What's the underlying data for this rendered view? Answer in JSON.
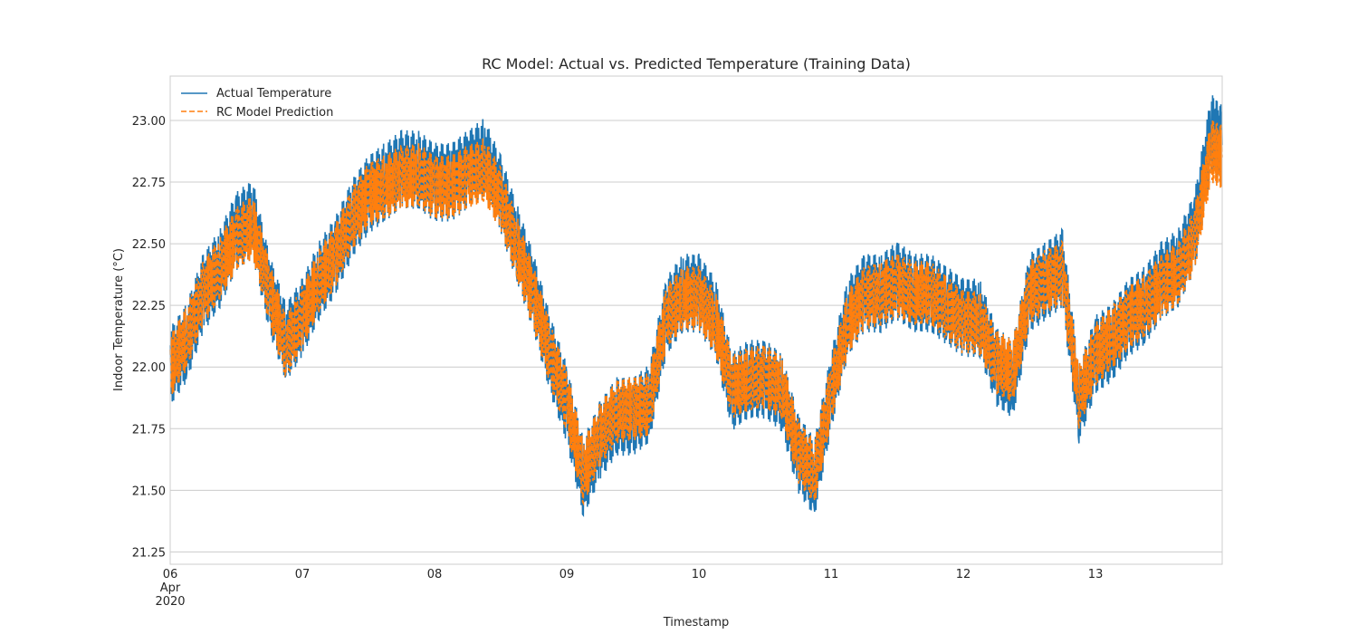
{
  "chart_data": {
    "type": "line",
    "title": "RC Model: Actual vs. Predicted Temperature (Training Data)",
    "xlabel": "Timestamp",
    "ylabel": "Indoor Temperature (°C)",
    "x_ticks": [
      {
        "value": "2020-04-06",
        "lines": [
          "06",
          "Apr",
          "2020"
        ]
      },
      {
        "value": "2020-04-07",
        "lines": [
          "07"
        ]
      },
      {
        "value": "2020-04-08",
        "lines": [
          "08"
        ]
      },
      {
        "value": "2020-04-09",
        "lines": [
          "09"
        ]
      },
      {
        "value": "2020-04-10",
        "lines": [
          "10"
        ]
      },
      {
        "value": "2020-04-11",
        "lines": [
          "11"
        ]
      },
      {
        "value": "2020-04-12",
        "lines": [
          "12"
        ]
      },
      {
        "value": "2020-04-13",
        "lines": [
          "13"
        ]
      }
    ],
    "xlim": [
      "2020-04-06 00:00",
      "2020-04-13 23:00"
    ],
    "y_ticks": [
      "21.25",
      "21.50",
      "21.75",
      "22.00",
      "22.25",
      "22.50",
      "22.75",
      "23.00"
    ],
    "ylim": [
      21.2,
      23.18
    ],
    "grid": true,
    "legend_position": "top-left",
    "series": [
      {
        "name": "Actual Temperature",
        "color": "#1f77b4",
        "style": "solid",
        "x": [
          "2020-04-06 00:00",
          "2020-04-06 03:00",
          "2020-04-06 06:00",
          "2020-04-06 09:00",
          "2020-04-06 12:00",
          "2020-04-06 15:00",
          "2020-04-06 18:00",
          "2020-04-06 21:00",
          "2020-04-07 00:00",
          "2020-04-07 03:00",
          "2020-04-07 06:00",
          "2020-04-07 09:00",
          "2020-04-07 12:00",
          "2020-04-07 15:00",
          "2020-04-07 18:00",
          "2020-04-07 21:00",
          "2020-04-08 00:00",
          "2020-04-08 03:00",
          "2020-04-08 06:00",
          "2020-04-08 09:00",
          "2020-04-08 12:00",
          "2020-04-08 15:00",
          "2020-04-08 18:00",
          "2020-04-08 21:00",
          "2020-04-09 00:00",
          "2020-04-09 03:00",
          "2020-04-09 06:00",
          "2020-04-09 09:00",
          "2020-04-09 12:00",
          "2020-04-09 15:00",
          "2020-04-09 18:00",
          "2020-04-09 21:00",
          "2020-04-10 00:00",
          "2020-04-10 03:00",
          "2020-04-10 06:00",
          "2020-04-10 09:00",
          "2020-04-10 12:00",
          "2020-04-10 15:00",
          "2020-04-10 18:00",
          "2020-04-10 21:00",
          "2020-04-11 00:00",
          "2020-04-11 03:00",
          "2020-04-11 06:00",
          "2020-04-11 09:00",
          "2020-04-11 12:00",
          "2020-04-11 15:00",
          "2020-04-11 18:00",
          "2020-04-11 21:00",
          "2020-04-12 00:00",
          "2020-04-12 03:00",
          "2020-04-12 06:00",
          "2020-04-12 09:00",
          "2020-04-12 12:00",
          "2020-04-12 15:00",
          "2020-04-12 18:00",
          "2020-04-12 21:00",
          "2020-04-13 00:00",
          "2020-04-13 03:00",
          "2020-04-13 06:00",
          "2020-04-13 09:00",
          "2020-04-13 12:00",
          "2020-04-13 15:00",
          "2020-04-13 18:00",
          "2020-04-13 21:00",
          "2020-04-13 23:00"
        ],
        "y": [
          22.0,
          22.1,
          22.3,
          22.4,
          22.55,
          22.6,
          22.3,
          22.1,
          22.2,
          22.35,
          22.45,
          22.6,
          22.7,
          22.75,
          22.8,
          22.8,
          22.75,
          22.75,
          22.8,
          22.85,
          22.7,
          22.5,
          22.3,
          22.05,
          21.85,
          21.55,
          21.7,
          21.8,
          21.8,
          21.85,
          22.2,
          22.3,
          22.3,
          22.2,
          21.9,
          21.95,
          21.95,
          21.9,
          21.65,
          21.55,
          21.9,
          22.2,
          22.3,
          22.3,
          22.35,
          22.3,
          22.3,
          22.25,
          22.2,
          22.2,
          22.0,
          21.95,
          22.3,
          22.35,
          22.4,
          21.85,
          22.05,
          22.1,
          22.2,
          22.25,
          22.35,
          22.4,
          22.55,
          22.95,
          22.9
        ]
      },
      {
        "name": "RC Model Prediction",
        "color": "#ff7f0e",
        "style": "dashed",
        "x": [
          "2020-04-06 00:00",
          "2020-04-06 03:00",
          "2020-04-06 06:00",
          "2020-04-06 09:00",
          "2020-04-06 12:00",
          "2020-04-06 15:00",
          "2020-04-06 18:00",
          "2020-04-06 21:00",
          "2020-04-07 00:00",
          "2020-04-07 03:00",
          "2020-04-07 06:00",
          "2020-04-07 09:00",
          "2020-04-07 12:00",
          "2020-04-07 15:00",
          "2020-04-07 18:00",
          "2020-04-07 21:00",
          "2020-04-08 00:00",
          "2020-04-08 03:00",
          "2020-04-08 06:00",
          "2020-04-08 09:00",
          "2020-04-08 12:00",
          "2020-04-08 15:00",
          "2020-04-08 18:00",
          "2020-04-08 21:00",
          "2020-04-09 00:00",
          "2020-04-09 03:00",
          "2020-04-09 06:00",
          "2020-04-09 09:00",
          "2020-04-09 12:00",
          "2020-04-09 15:00",
          "2020-04-09 18:00",
          "2020-04-09 21:00",
          "2020-04-10 00:00",
          "2020-04-10 03:00",
          "2020-04-10 06:00",
          "2020-04-10 09:00",
          "2020-04-10 12:00",
          "2020-04-10 15:00",
          "2020-04-10 18:00",
          "2020-04-10 21:00",
          "2020-04-11 00:00",
          "2020-04-11 03:00",
          "2020-04-11 06:00",
          "2020-04-11 09:00",
          "2020-04-11 12:00",
          "2020-04-11 15:00",
          "2020-04-11 18:00",
          "2020-04-11 21:00",
          "2020-04-12 00:00",
          "2020-04-12 03:00",
          "2020-04-12 06:00",
          "2020-04-12 09:00",
          "2020-04-12 12:00",
          "2020-04-12 15:00",
          "2020-04-12 18:00",
          "2020-04-12 21:00",
          "2020-04-13 00:00",
          "2020-04-13 03:00",
          "2020-04-13 06:00",
          "2020-04-13 09:00",
          "2020-04-13 12:00",
          "2020-04-13 15:00",
          "2020-04-13 18:00",
          "2020-04-13 21:00",
          "2020-04-13 23:00"
        ],
        "y": [
          22.0,
          22.12,
          22.3,
          22.4,
          22.52,
          22.57,
          22.3,
          22.08,
          22.2,
          22.35,
          22.45,
          22.6,
          22.7,
          22.73,
          22.77,
          22.78,
          22.73,
          22.73,
          22.77,
          22.8,
          22.68,
          22.48,
          22.28,
          22.05,
          21.86,
          21.57,
          21.72,
          21.82,
          21.83,
          21.85,
          22.2,
          22.28,
          22.28,
          22.18,
          21.92,
          21.95,
          21.96,
          21.92,
          21.66,
          21.57,
          21.9,
          22.18,
          22.28,
          22.3,
          22.33,
          22.3,
          22.3,
          22.24,
          22.18,
          22.18,
          22.02,
          21.98,
          22.3,
          22.35,
          22.38,
          21.88,
          22.05,
          22.12,
          22.2,
          22.25,
          22.33,
          22.38,
          22.52,
          22.88,
          22.85
        ]
      }
    ]
  }
}
